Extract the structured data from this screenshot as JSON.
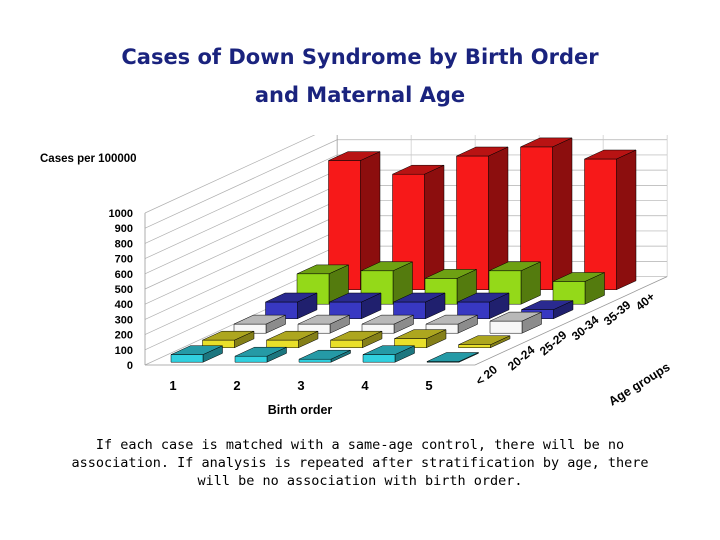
{
  "title": {
    "line1": "Cases of Down Syndrome by Birth Order",
    "line2": "and Maternal Age"
  },
  "caption": "If each case is matched with a same-age control, there will be no association. If analysis is repeated after stratification by age, there will be no association with birth order.",
  "chart_data": {
    "type": "bar3d",
    "title": "Cases of Down Syndrome by Birth Order and Maternal Age",
    "ylabel": "Cases per 100000",
    "xlabel": "Birth order",
    "zlabel": "Age groups",
    "ylim": [
      0,
      1000
    ],
    "yticks": [
      "0",
      "100",
      "200",
      "300",
      "400",
      "500",
      "600",
      "700",
      "800",
      "900",
      "1000"
    ],
    "categories": [
      "1",
      "2",
      "3",
      "4",
      "5"
    ],
    "series": [
      {
        "name": "< 20",
        "color": "#33d6e6",
        "values": [
          50,
          40,
          20,
          50,
          5
        ]
      },
      {
        "name": "20-24",
        "color": "#f0e62b",
        "values": [
          50,
          50,
          50,
          60,
          20
        ]
      },
      {
        "name": "25-29",
        "color": "#ffffff",
        "values": [
          60,
          60,
          60,
          60,
          80
        ]
      },
      {
        "name": "30-34",
        "color": "#3a3ac8",
        "values": [
          110,
          110,
          110,
          110,
          60
        ]
      },
      {
        "name": "35-39",
        "color": "#99e01a",
        "values": [
          200,
          220,
          170,
          220,
          150
        ]
      },
      {
        "name": "40+",
        "color": "#ff1a1a",
        "values": [
          850,
          760,
          880,
          940,
          860
        ]
      }
    ]
  }
}
